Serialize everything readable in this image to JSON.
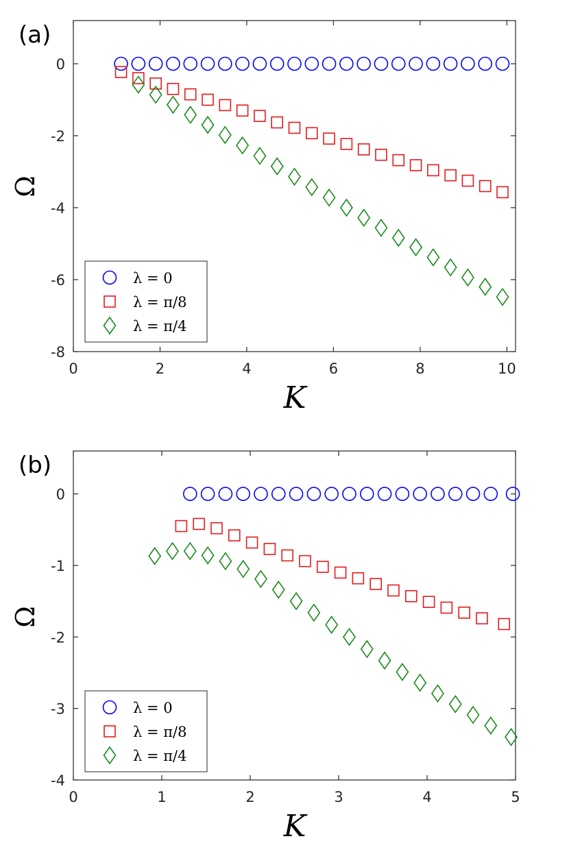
{
  "colors": {
    "lambda_0": "#0000ff",
    "lambda_pi8": "#e41a1c",
    "lambda_pi4": "#1a8a1a"
  },
  "chart_data": [
    {
      "panel_label": "(a)",
      "type": "scatter",
      "xlabel": "K",
      "ylabel": "Ω",
      "xlim": [
        0,
        10.2
      ],
      "ylim": [
        -8,
        1.2
      ],
      "xticks": [
        0,
        2,
        4,
        6,
        8,
        10
      ],
      "yticks": [
        0,
        -2,
        -4,
        -6,
        -8
      ],
      "xtick_labels": [
        "0",
        "2",
        "4",
        "6",
        "8",
        "10"
      ],
      "ytick_labels": [
        "0",
        "-2",
        "-4",
        "-6",
        "-8"
      ],
      "legend_position": "bottom-left",
      "grid": false,
      "series": [
        {
          "name": "λ = 0",
          "marker": "circle",
          "color": "#0000ff",
          "x": [
            1.1,
            1.5,
            1.9,
            2.3,
            2.7,
            3.1,
            3.5,
            3.9,
            4.3,
            4.7,
            5.1,
            5.5,
            5.9,
            6.3,
            6.7,
            7.1,
            7.5,
            7.9,
            8.3,
            8.7,
            9.1,
            9.5,
            9.9
          ],
          "y": [
            0,
            0,
            0,
            0,
            0,
            0,
            0,
            0,
            0,
            0,
            0,
            0,
            0,
            0,
            0,
            0,
            0,
            0,
            0,
            0,
            0,
            0,
            0
          ]
        },
        {
          "name": "λ = π/8",
          "marker": "square",
          "color": "#e41a1c",
          "x": [
            1.1,
            1.5,
            1.9,
            2.3,
            2.7,
            3.1,
            3.5,
            3.9,
            4.3,
            4.7,
            5.1,
            5.5,
            5.9,
            6.3,
            6.7,
            7.1,
            7.5,
            7.9,
            8.3,
            8.7,
            9.1,
            9.5,
            9.9
          ],
          "y": [
            -0.23,
            -0.4,
            -0.55,
            -0.7,
            -0.85,
            -1.0,
            -1.15,
            -1.3,
            -1.45,
            -1.63,
            -1.78,
            -1.93,
            -2.08,
            -2.23,
            -2.38,
            -2.53,
            -2.68,
            -2.82,
            -2.96,
            -3.1,
            -3.25,
            -3.4,
            -3.57
          ]
        },
        {
          "name": "λ = π/4",
          "marker": "diamond",
          "color": "#1a8a1a",
          "x": [
            1.5,
            1.9,
            2.3,
            2.7,
            3.1,
            3.5,
            3.9,
            4.3,
            4.7,
            5.1,
            5.5,
            5.9,
            6.3,
            6.7,
            7.1,
            7.5,
            7.9,
            8.3,
            8.7,
            9.1,
            9.5,
            9.9
          ],
          "y": [
            -0.58,
            -0.86,
            -1.14,
            -1.42,
            -1.7,
            -1.98,
            -2.27,
            -2.56,
            -2.85,
            -3.14,
            -3.43,
            -3.72,
            -4.0,
            -4.28,
            -4.56,
            -4.84,
            -5.1,
            -5.38,
            -5.66,
            -5.94,
            -6.2,
            -6.48
          ]
        }
      ]
    },
    {
      "panel_label": "(b)",
      "type": "scatter",
      "xlabel": "K",
      "ylabel": "Ω",
      "xlim": [
        0,
        5
      ],
      "ylim": [
        -4,
        0.6
      ],
      "xticks": [
        0,
        1,
        2,
        3,
        4,
        5
      ],
      "yticks": [
        0,
        -1,
        -2,
        -3,
        -4
      ],
      "xtick_labels": [
        "0",
        "1",
        "2",
        "3",
        "4",
        "5"
      ],
      "ytick_labels": [
        "0",
        "-1",
        "-2",
        "-3",
        "-4"
      ],
      "legend_position": "bottom-left",
      "grid": false,
      "series": [
        {
          "name": "λ = 0",
          "marker": "circle",
          "color": "#0000ff",
          "x": [
            1.32,
            1.52,
            1.72,
            1.92,
            2.12,
            2.32,
            2.52,
            2.72,
            2.92,
            3.12,
            3.32,
            3.52,
            3.72,
            3.92,
            4.12,
            4.32,
            4.52,
            4.72,
            4.97
          ],
          "y": [
            0,
            0,
            0,
            0,
            0,
            0,
            0,
            0,
            0,
            0,
            0,
            0,
            0,
            0,
            0,
            0,
            0,
            0,
            0
          ]
        },
        {
          "name": "λ = π/8",
          "marker": "square",
          "color": "#e41a1c",
          "x": [
            1.22,
            1.42,
            1.62,
            1.82,
            2.02,
            2.22,
            2.42,
            2.62,
            2.82,
            3.02,
            3.22,
            3.42,
            3.62,
            3.82,
            4.02,
            4.22,
            4.42,
            4.62,
            4.87
          ],
          "y": [
            -0.45,
            -0.42,
            -0.48,
            -0.58,
            -0.68,
            -0.77,
            -0.86,
            -0.94,
            -1.02,
            -1.1,
            -1.18,
            -1.26,
            -1.35,
            -1.43,
            -1.51,
            -1.59,
            -1.66,
            -1.74,
            -1.82
          ]
        },
        {
          "name": "λ = π/4",
          "marker": "diamond",
          "color": "#1a8a1a",
          "x": [
            0.92,
            1.12,
            1.32,
            1.52,
            1.72,
            1.92,
            2.12,
            2.32,
            2.52,
            2.72,
            2.92,
            3.12,
            3.32,
            3.52,
            3.72,
            3.92,
            4.12,
            4.32,
            4.52,
            4.72,
            4.95
          ],
          "y": [
            -0.87,
            -0.8,
            -0.8,
            -0.86,
            -0.94,
            -1.05,
            -1.19,
            -1.34,
            -1.5,
            -1.66,
            -1.83,
            -2.0,
            -2.17,
            -2.33,
            -2.49,
            -2.64,
            -2.79,
            -2.94,
            -3.09,
            -3.24,
            -3.4
          ]
        }
      ]
    }
  ]
}
